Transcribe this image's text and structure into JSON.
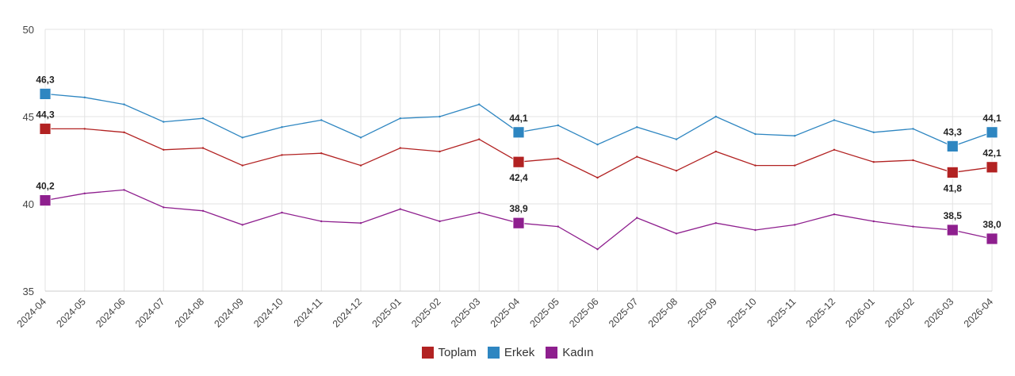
{
  "chart_data": {
    "type": "line",
    "title": "",
    "xlabel": "",
    "ylabel": "",
    "ylim": [
      35,
      50
    ],
    "yticks": [
      35,
      40,
      45,
      50
    ],
    "grid": true,
    "legend_position": "bottom",
    "categories": [
      "2024-04",
      "2024-05",
      "2024-06",
      "2024-07",
      "2024-08",
      "2024-09",
      "2024-10",
      "2024-11",
      "2024-12",
      "2025-01",
      "2025-02",
      "2025-03",
      "2025-04",
      "2025-05",
      "2025-06",
      "2025-07",
      "2025-08",
      "2025-09",
      "2025-10",
      "2025-11",
      "2025-12",
      "2026-01",
      "2026-02",
      "2026-03",
      "2026-04"
    ],
    "series": [
      {
        "name": "Toplam",
        "color": "#b22222",
        "values": [
          44.3,
          44.3,
          44.1,
          43.1,
          43.2,
          42.2,
          42.8,
          42.9,
          42.2,
          43.2,
          43.0,
          43.7,
          42.4,
          42.6,
          41.5,
          42.7,
          41.9,
          43.0,
          42.2,
          42.2,
          43.1,
          42.4,
          42.5,
          41.8,
          42.1
        ],
        "labeled_points": [
          0,
          12,
          23,
          24
        ],
        "labels": [
          "44,3",
          "42,4",
          "41,8",
          "42,1"
        ],
        "label_side": [
          "above",
          "below",
          "below",
          "above"
        ]
      },
      {
        "name": "Erkek",
        "color": "#2e86c1",
        "values": [
          46.3,
          46.1,
          45.7,
          44.7,
          44.9,
          43.8,
          44.4,
          44.8,
          43.8,
          44.9,
          45.0,
          45.7,
          44.1,
          44.5,
          43.4,
          44.4,
          43.7,
          45.0,
          44.0,
          43.9,
          44.8,
          44.1,
          44.3,
          43.3,
          44.1
        ],
        "labeled_points": [
          0,
          12,
          23,
          24
        ],
        "labels": [
          "46,3",
          "44,1",
          "43,3",
          "44,1"
        ],
        "label_side": [
          "above",
          "above",
          "above",
          "above"
        ]
      },
      {
        "name": "Kadın",
        "color": "#8e1f8e",
        "values": [
          40.2,
          40.6,
          40.8,
          39.8,
          39.6,
          38.8,
          39.5,
          39.0,
          38.9,
          39.7,
          39.0,
          39.5,
          38.9,
          38.7,
          37.4,
          39.2,
          38.3,
          38.9,
          38.5,
          38.8,
          39.4,
          39.0,
          38.7,
          38.5,
          38.0
        ],
        "labeled_points": [
          0,
          12,
          23,
          24
        ],
        "labels": [
          "40,2",
          "38,9",
          "38,5",
          "38,0"
        ],
        "label_side": [
          "above",
          "above",
          "above",
          "above"
        ]
      }
    ]
  },
  "legend": {
    "items": [
      {
        "label": "Toplam",
        "color": "#b22222"
      },
      {
        "label": "Erkek",
        "color": "#2e86c1"
      },
      {
        "label": "Kadın",
        "color": "#8e1f8e"
      }
    ]
  }
}
